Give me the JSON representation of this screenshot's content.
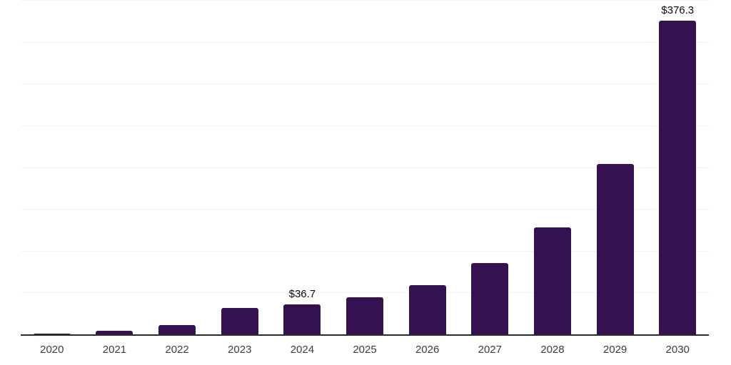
{
  "chart_data": {
    "type": "bar",
    "title": "",
    "xlabel": "",
    "ylabel": "",
    "categories": [
      "2020",
      "2021",
      "2022",
      "2023",
      "2024",
      "2025",
      "2026",
      "2027",
      "2028",
      "2029",
      "2030"
    ],
    "values": [
      2.0,
      5.1,
      11.9,
      32.4,
      36.7,
      45.5,
      60.0,
      86.0,
      128.6,
      205.0,
      376.3
    ],
    "data_labels": [
      "",
      "",
      "",
      "",
      "$36.7",
      "",
      "",
      "",
      "",
      "",
      "$376.3"
    ],
    "ylim": [
      0,
      400
    ],
    "gridline_step": 50,
    "grid": true,
    "legend": "none",
    "currency_prefix": "$"
  },
  "colors": {
    "background": "#ffffff",
    "bar": "#351150",
    "axis_line": "#2a2a2a",
    "gridline": "#f2f2f2",
    "tick_label": "#3d3d3d",
    "data_label": "#0a0a0a"
  }
}
